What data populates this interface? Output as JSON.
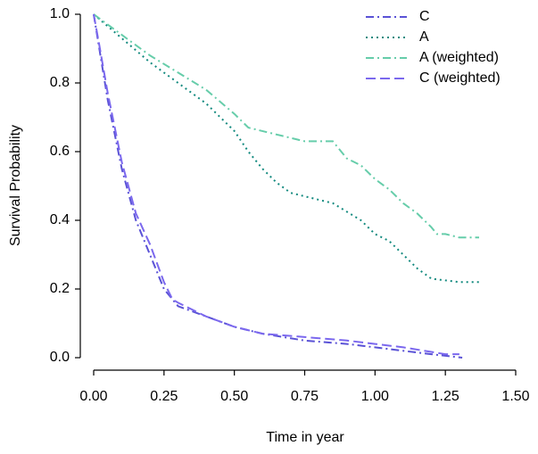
{
  "chart_data": {
    "type": "line",
    "x_label": "Time in year",
    "y_label": "Survival Probability",
    "xlim": [
      0,
      1.5
    ],
    "ylim": [
      0,
      1
    ],
    "xticks": [
      {
        "value": 0,
        "label": "0.00"
      },
      {
        "value": 0.25,
        "label": "0.25"
      },
      {
        "value": 0.5,
        "label": "0.50"
      },
      {
        "value": 0.75,
        "label": "0.75"
      },
      {
        "value": 1,
        "label": "1.00"
      },
      {
        "value": 1.25,
        "label": "1.25"
      },
      {
        "value": 1.5,
        "label": "1.50"
      }
    ],
    "yticks": [
      {
        "value": 0,
        "label": "0.0"
      },
      {
        "value": 0.2,
        "label": "0.2"
      },
      {
        "value": 0.4,
        "label": "0.4"
      },
      {
        "value": 0.6,
        "label": "0.6"
      },
      {
        "value": 0.8,
        "label": "0.8"
      },
      {
        "value": 1,
        "label": "1.0"
      }
    ],
    "legend": "upper right",
    "series": [
      {
        "name": "C",
        "color": "#5a52d6",
        "linestyle": "dashdot",
        "x": [
          0,
          0.02,
          0.05,
          0.1,
          0.15,
          0.2,
          0.25,
          0.28,
          0.3,
          0.4,
          0.5,
          0.6,
          0.75,
          0.9,
          1.0,
          1.1,
          1.2,
          1.31
        ],
        "values": [
          1,
          0.9,
          0.75,
          0.55,
          0.4,
          0.3,
          0.2,
          0.17,
          0.15,
          0.12,
          0.09,
          0.07,
          0.05,
          0.04,
          0.03,
          0.02,
          0.01,
          0
        ]
      },
      {
        "name": "A",
        "color": "#138a7f",
        "linestyle": "dotted",
        "x": [
          0,
          0.1,
          0.2,
          0.3,
          0.4,
          0.5,
          0.55,
          0.6,
          0.65,
          0.7,
          0.75,
          0.85,
          0.95,
          1.0,
          1.05,
          1.1,
          1.15,
          1.2,
          1.3,
          1.37
        ],
        "values": [
          1,
          0.93,
          0.86,
          0.8,
          0.74,
          0.66,
          0.6,
          0.55,
          0.51,
          0.48,
          0.47,
          0.45,
          0.4,
          0.36,
          0.34,
          0.3,
          0.26,
          0.23,
          0.22,
          0.22
        ]
      },
      {
        "name": "A (weighted)",
        "color": "#66cdaa",
        "linestyle": "dashdot",
        "x": [
          0,
          0.1,
          0.2,
          0.3,
          0.4,
          0.5,
          0.55,
          0.65,
          0.75,
          0.85,
          0.9,
          0.95,
          1.0,
          1.05,
          1.1,
          1.15,
          1.2,
          1.22,
          1.25,
          1.3,
          1.37
        ],
        "values": [
          1,
          0.94,
          0.88,
          0.83,
          0.78,
          0.71,
          0.67,
          0.65,
          0.63,
          0.63,
          0.58,
          0.56,
          0.52,
          0.49,
          0.45,
          0.42,
          0.38,
          0.36,
          0.36,
          0.35,
          0.35
        ]
      },
      {
        "name": "C (weighted)",
        "color": "#7b68ee",
        "linestyle": "dashed",
        "x": [
          0,
          0.02,
          0.05,
          0.1,
          0.15,
          0.2,
          0.25,
          0.28,
          0.3,
          0.4,
          0.5,
          0.6,
          0.75,
          0.9,
          1.0,
          1.1,
          1.25,
          1.3
        ],
        "values": [
          1,
          0.91,
          0.77,
          0.57,
          0.42,
          0.33,
          0.22,
          0.17,
          0.16,
          0.12,
          0.09,
          0.07,
          0.06,
          0.05,
          0.04,
          0.03,
          0.01,
          0.01
        ]
      }
    ]
  }
}
